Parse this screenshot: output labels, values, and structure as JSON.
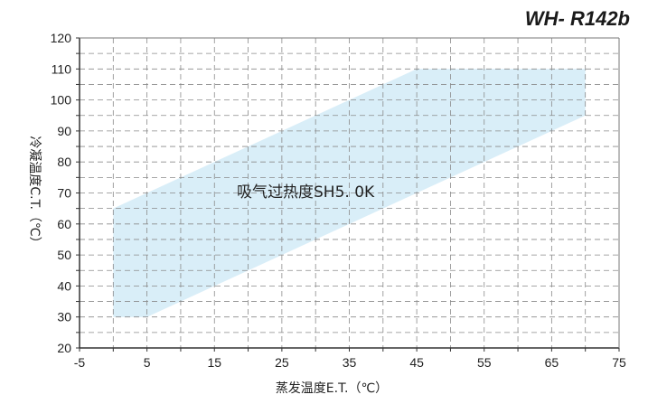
{
  "header": {
    "model": "WH- R142b"
  },
  "chart_data": {
    "type": "area",
    "title": "WH- R142b",
    "xlabel": "蒸发温度E.T.（℃）",
    "ylabel": "冷凝温度C.T.（℃）",
    "xlim": [
      -5,
      75
    ],
    "ylim": [
      20,
      120
    ],
    "x_ticks": [
      -5,
      5,
      15,
      25,
      35,
      45,
      55,
      65,
      75
    ],
    "y_ticks": [
      20,
      30,
      40,
      50,
      60,
      70,
      80,
      90,
      100,
      110,
      120
    ],
    "grid": true,
    "envelope": {
      "x": [
        0,
        0,
        5,
        70,
        70,
        45
      ],
      "y": [
        65,
        30,
        30,
        95,
        110,
        110
      ]
    },
    "annotation": "吸气过热度SH5. 0K",
    "colors": {
      "envelope_fill": "#d9eef8",
      "grid": "#8a8a8a",
      "axis": "#333333"
    }
  }
}
